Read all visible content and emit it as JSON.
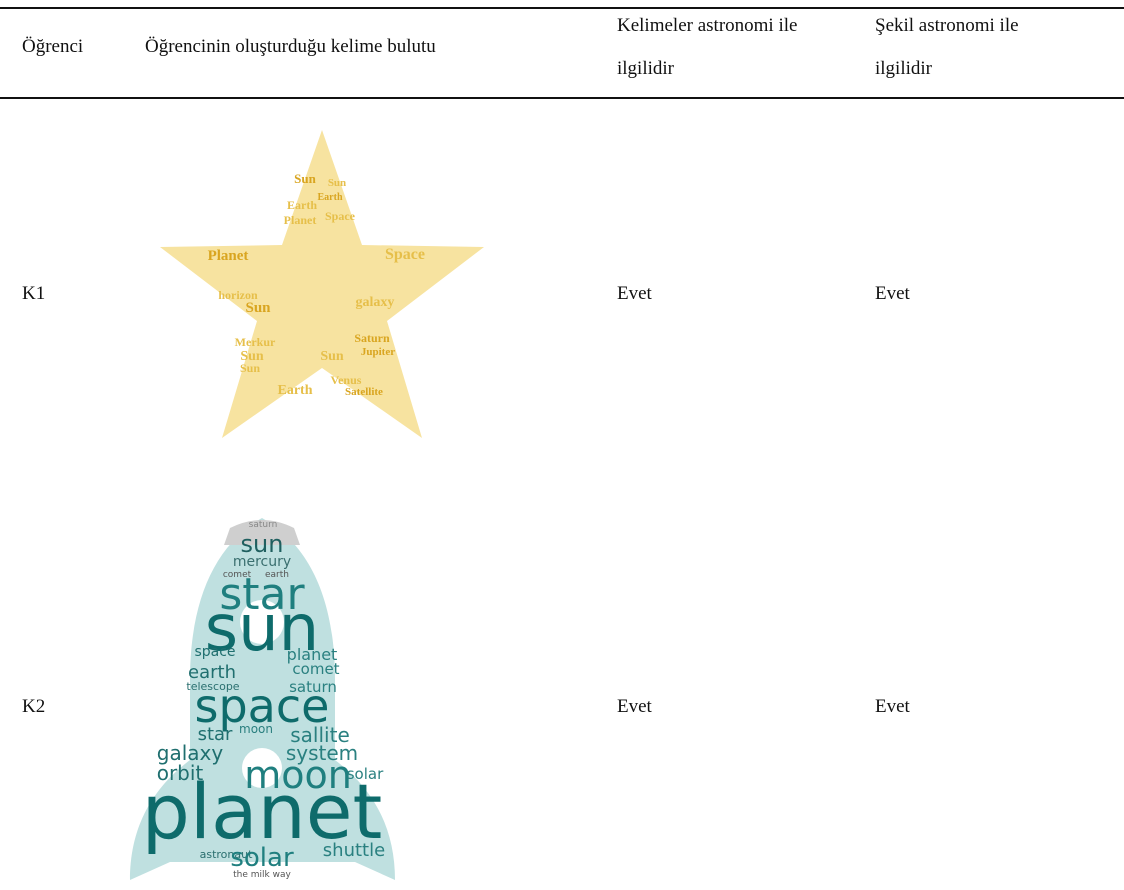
{
  "table": {
    "headers": [
      "Öğrenci",
      "Öğrencinin oluşturduğu kelime bulutu",
      "Kelimeler astronomi ile ilgilidir",
      "Şekil astronomi ile ilgilidir"
    ],
    "rows": [
      {
        "student": "K1",
        "cloud_words": [
          "Sun",
          "Sun",
          "Earth",
          "Earth",
          "Planet",
          "Space",
          "Planet",
          "Space",
          "horizon",
          "Sun",
          "galaxy",
          "Merkur",
          "Saturn",
          "Sun",
          "Sun",
          "Jupiter",
          "Venus",
          "Earth",
          "Satellite",
          "Sun"
        ],
        "words_related": "Evet",
        "shape_related": "Evet"
      },
      {
        "student": "K2",
        "cloud_words": [
          "saturn",
          "sun",
          "mercury",
          "comet",
          "earth",
          "star",
          "sun",
          "space",
          "planet",
          "comet",
          "earth",
          "telescope",
          "saturn",
          "space",
          "star",
          "moon",
          "sallite",
          "galaxy",
          "system",
          "orbit",
          "moon",
          "solar",
          "planet",
          "astronaut",
          "solar",
          "shuttle",
          "the milk way"
        ],
        "words_related": "Evet",
        "shape_related": "Evet"
      }
    ]
  }
}
